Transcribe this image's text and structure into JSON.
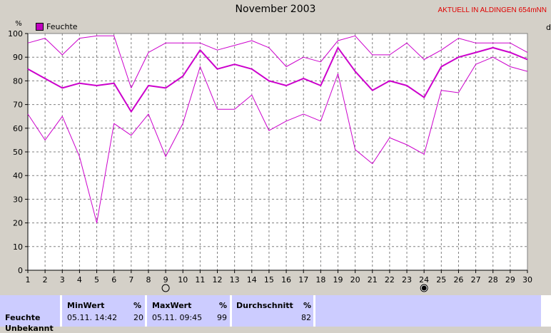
{
  "window": {
    "title": "November 2003",
    "status": "AKTUELL IN ALDINGEN 654mNN"
  },
  "colors": {
    "series": "#cc00cc",
    "background": "#d4d0c8",
    "panel": "#ccccff",
    "status": "#e00000"
  },
  "chart_data": {
    "type": "line",
    "title": "November 2003",
    "ylabel": "%",
    "ylim": [
      0,
      100
    ],
    "yticks": [
      0,
      10,
      20,
      30,
      40,
      50,
      60,
      70,
      80,
      90,
      100
    ],
    "x": [
      1,
      2,
      3,
      4,
      5,
      6,
      7,
      8,
      9,
      10,
      11,
      12,
      13,
      14,
      15,
      16,
      17,
      18,
      19,
      20,
      21,
      22,
      23,
      24,
      25,
      26,
      27,
      28,
      29,
      30
    ],
    "legend": "Feuchte",
    "grid": true,
    "series": [
      {
        "name": "Feuchte",
        "role": "max",
        "values": [
          96,
          98,
          91,
          98,
          99,
          99,
          77,
          92,
          96,
          96,
          96,
          93,
          95,
          97,
          94,
          86,
          90,
          88,
          97,
          99,
          91,
          91,
          96,
          89,
          93,
          98,
          96,
          96,
          96,
          92
        ]
      },
      {
        "name": "Feuchte",
        "role": "avg",
        "values": [
          85,
          81,
          77,
          79,
          78,
          79,
          67,
          78,
          77,
          82,
          93,
          85,
          87,
          85,
          80,
          78,
          81,
          78,
          94,
          84,
          76,
          80,
          78,
          73,
          86,
          90,
          92,
          94,
          92,
          89
        ]
      },
      {
        "name": "Feuchte",
        "role": "min",
        "values": [
          66,
          55,
          65,
          48,
          20,
          62,
          57,
          66,
          48,
          62,
          86,
          68,
          68,
          74,
          59,
          63,
          66,
          63,
          83,
          51,
          45,
          56,
          53,
          49,
          76,
          75,
          87,
          90,
          86,
          84
        ]
      }
    ],
    "moon_markers": [
      {
        "day": 9,
        "phase": "full"
      },
      {
        "day": 24,
        "phase": "new"
      }
    ],
    "right_cutoff_label": "d"
  },
  "stats": {
    "row_label": "Feuchte",
    "row_label2": "Unbekannt",
    "min": {
      "header": "MinWert",
      "unit": "%",
      "time": "05.11.  14:42",
      "value": "20"
    },
    "max": {
      "header": "MaxWert",
      "unit": "%",
      "time": "05.11.  09:45",
      "value": "99"
    },
    "avg": {
      "header": "Durchschnitt",
      "unit": "%",
      "value": "82"
    }
  }
}
